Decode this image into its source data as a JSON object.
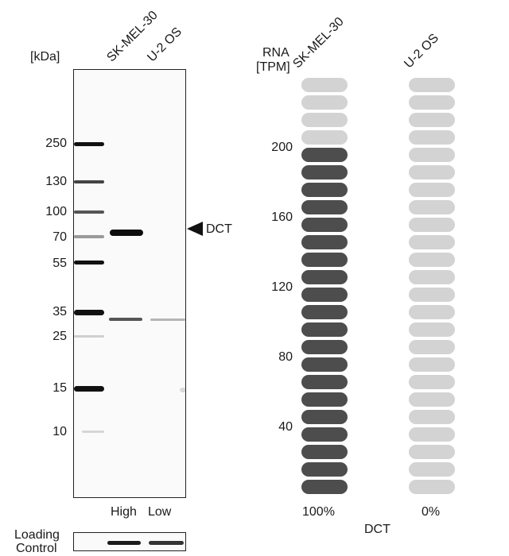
{
  "western_blot": {
    "unit_label": "[kDa]",
    "lanes": [
      "SK-MEL-30",
      "U-2 OS"
    ],
    "markers": [
      "250",
      "130",
      "100",
      "70",
      "55",
      "35",
      "25",
      "15",
      "10"
    ],
    "target_label": "DCT",
    "lane_levels": [
      "High",
      "Low"
    ],
    "loading_control_label": [
      "Loading",
      "Control"
    ]
  },
  "rna": {
    "axis_label": [
      "RNA",
      "[TPM]"
    ],
    "samples": [
      "SK-MEL-30",
      "U-2 OS"
    ],
    "gene_label": "DCT",
    "chart_data": {
      "type": "bar",
      "categories": [
        "SK-MEL-30",
        "U-2 OS"
      ],
      "y_ticks": [
        "200",
        "160",
        "120",
        "80",
        "40"
      ],
      "values": [
        100,
        0
      ],
      "value_labels": [
        "100%",
        "0%"
      ],
      "units_total": 24,
      "filled_units": [
        20,
        0
      ],
      "ylabel": "RNA [TPM]"
    },
    "colors": {
      "filled": "#4d4d4d",
      "empty": "#d3d3d3"
    }
  }
}
